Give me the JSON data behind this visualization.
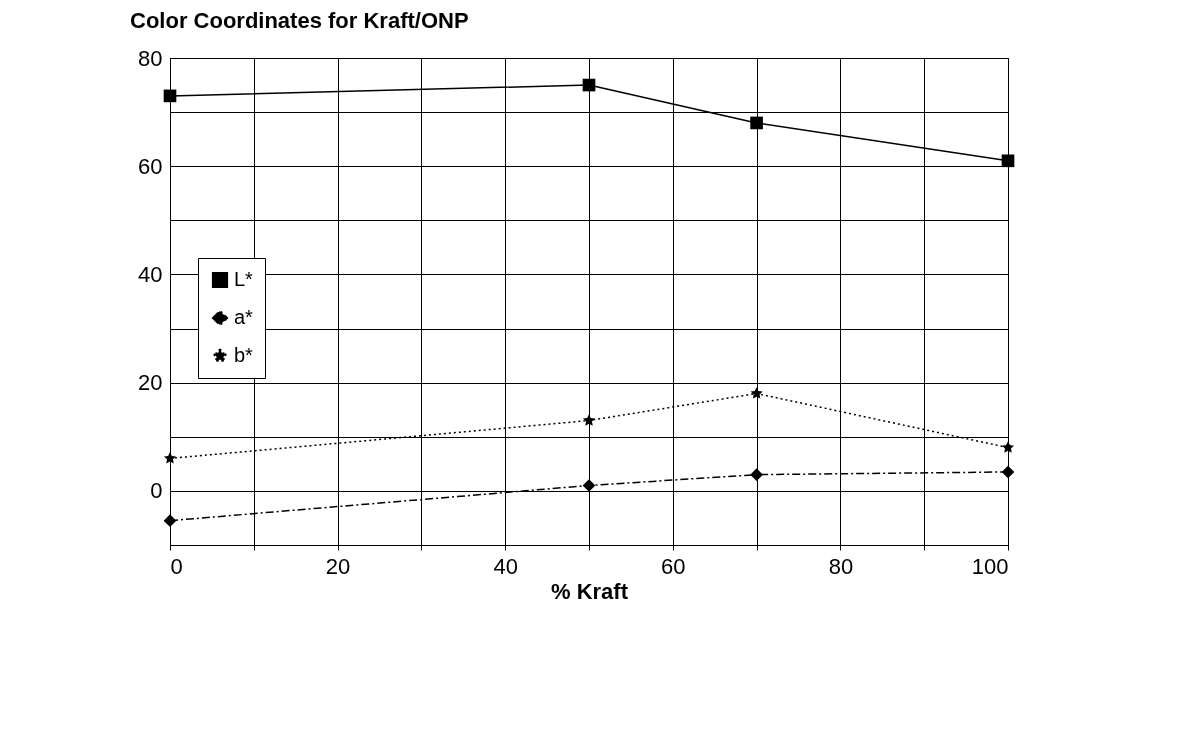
{
  "chart_data": {
    "type": "line",
    "title": "Color Coordinates for Kraft/ONP",
    "xlabel": "% Kraft",
    "x": [
      0,
      50,
      70,
      100
    ],
    "xlim": [
      0,
      100
    ],
    "xticks": [
      0,
      {
        "value": 10,
        "label": null
      },
      20,
      {
        "value": 30,
        "label": null
      },
      40,
      {
        "value": 50,
        "label": null
      },
      60,
      {
        "value": 70,
        "label": null
      },
      80,
      {
        "value": 90,
        "label": null
      },
      100
    ],
    "ylim": [
      -10,
      80
    ],
    "yticks": [
      {
        "value": -10,
        "label": null
      },
      0,
      {
        "value": 10,
        "label": null
      },
      20,
      {
        "value": 30,
        "label": null
      },
      40,
      {
        "value": 50,
        "label": null
      },
      60,
      {
        "value": 70,
        "label": null
      },
      80
    ],
    "grid": true,
    "legend": "left",
    "series": [
      {
        "name": "L*",
        "color": "#000000",
        "marker": "square",
        "line_style": "solid",
        "values": [
          73,
          75,
          68,
          61
        ]
      },
      {
        "name": "a*",
        "color": "#000000",
        "marker": "diamond",
        "line_style": "dashed",
        "values": [
          -5.5,
          1,
          3,
          3.5
        ]
      },
      {
        "name": "b*",
        "color": "#000000",
        "marker": "star",
        "line_style": "dotted",
        "values": [
          6,
          13,
          18,
          8
        ]
      }
    ]
  }
}
